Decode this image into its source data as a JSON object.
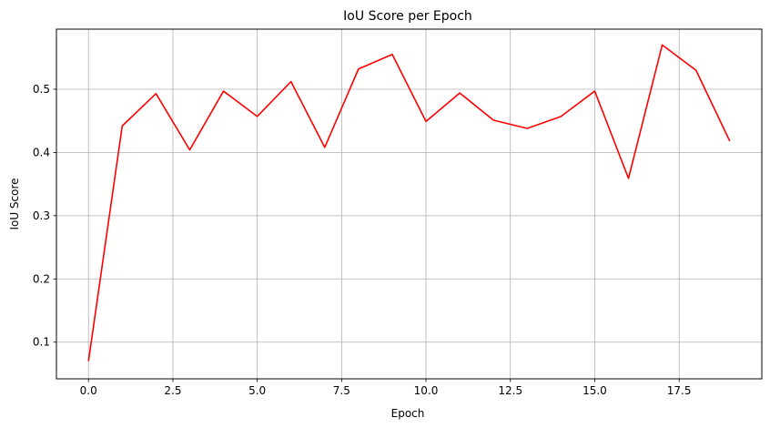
{
  "chart_data": {
    "type": "line",
    "title": "IoU Score per Epoch",
    "xlabel": "Epoch",
    "ylabel": "IoU Score",
    "xlim": [
      -0.95,
      19.95
    ],
    "ylim": [
      0.042,
      0.595
    ],
    "x_ticks": [
      0.0,
      2.5,
      5.0,
      7.5,
      10.0,
      12.5,
      15.0,
      17.5
    ],
    "x_tick_labels": [
      "0.0",
      "2.5",
      "5.0",
      "7.5",
      "10.0",
      "12.5",
      "15.0",
      "17.5"
    ],
    "y_ticks": [
      0.1,
      0.2,
      0.3,
      0.4,
      0.5
    ],
    "y_tick_labels": [
      "0.1",
      "0.2",
      "0.3",
      "0.4",
      "0.5"
    ],
    "grid": true,
    "series": [
      {
        "color": "#ff0000",
        "x": [
          0,
          1,
          2,
          3,
          4,
          5,
          6,
          7,
          8,
          9,
          10,
          11,
          12,
          13,
          14,
          15,
          16,
          17,
          18,
          19
        ],
        "values": [
          0.07,
          0.442,
          0.493,
          0.404,
          0.497,
          0.457,
          0.512,
          0.408,
          0.532,
          0.555,
          0.449,
          0.494,
          0.451,
          0.438,
          0.457,
          0.497,
          0.359,
          0.57,
          0.53,
          0.418
        ]
      }
    ]
  }
}
